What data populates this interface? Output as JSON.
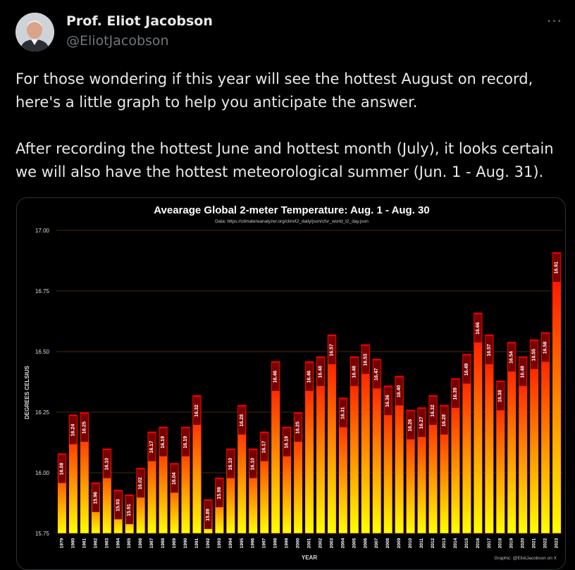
{
  "author": {
    "name": "Prof. Eliot Jacobson",
    "handle": "@EliotJacobson"
  },
  "more_label": "···",
  "tweet": {
    "paragraph1": "For those wondering if this year will see the hottest August on record, here's a little graph to help you anticipate the answer.",
    "paragraph2": "After recording the hottest June and hottest month (July), it looks certain we will also have the hottest meteorological summer (Jun. 1 - Aug. 31)."
  },
  "colors": {
    "bar_top": "#ff0000",
    "bar_bottom": "#ffff00",
    "label_box": "#7a0000",
    "grid": "#5a3a00",
    "background": "#000000"
  },
  "chart_data": {
    "type": "bar",
    "title": "Avearage Global 2-meter Temperature: Aug. 1 - Aug. 30",
    "subtitle": "Data: https://climatereanalyzer.org/clim/t2_daily/json/cfsr_world_t2_day.json",
    "xlabel": "YEAR",
    "ylabel": "DEGREES CELSIUS",
    "credit": "Graphic: @EliotJacobson on X",
    "ylim": [
      15.75,
      17.0
    ],
    "yticks": [
      "17.00",
      "16.75",
      "16.50",
      "16.25",
      "16.00",
      "15.75"
    ],
    "categories": [
      "1979",
      "1980",
      "1981",
      "1982",
      "1983",
      "1984",
      "1985",
      "1986",
      "1987",
      "1988",
      "1989",
      "1990",
      "1991",
      "1992",
      "1993",
      "1994",
      "1995",
      "1996",
      "1997",
      "1998",
      "1999",
      "2000",
      "2001",
      "2002",
      "2003",
      "2004",
      "2005",
      "2006",
      "2007",
      "2008",
      "2009",
      "2010",
      "2011",
      "2012",
      "2013",
      "2014",
      "2015",
      "2016",
      "2017",
      "2018",
      "2019",
      "2020",
      "2021",
      "2022",
      "2023"
    ],
    "values": [
      16.08,
      16.24,
      16.25,
      15.96,
      16.1,
      15.93,
      15.91,
      16.02,
      16.17,
      16.19,
      16.04,
      16.19,
      16.32,
      15.89,
      15.98,
      16.1,
      16.28,
      16.1,
      16.17,
      16.46,
      16.19,
      16.25,
      16.46,
      16.48,
      16.57,
      16.31,
      16.48,
      16.53,
      16.47,
      16.36,
      16.4,
      16.26,
      16.27,
      16.32,
      16.28,
      16.39,
      16.49,
      16.66,
      16.57,
      16.38,
      16.54,
      16.48,
      16.55,
      16.58,
      16.91
    ],
    "labels": [
      "16.08",
      "16.24",
      "16.25",
      "15.96",
      "16.10",
      "15.93",
      "15.91",
      "16.02",
      "16.17",
      "16.19",
      "16.04",
      "16.19",
      "16.32",
      "15.89",
      "15.98",
      "16.10",
      "16.28",
      "16.10",
      "16.17",
      "16.46",
      "16.19",
      "16.25",
      "16.46",
      "16.48",
      "16.57",
      "16.31",
      "16.48",
      "16.53",
      "16.47",
      "16.36",
      "16.40",
      "16.26",
      "16.27",
      "16.32",
      "16.28",
      "16.39",
      "16.49",
      "16.66",
      "16.57",
      "16.38",
      "16.54",
      "16.48",
      "16.55",
      "16.58",
      "16.91"
    ]
  }
}
